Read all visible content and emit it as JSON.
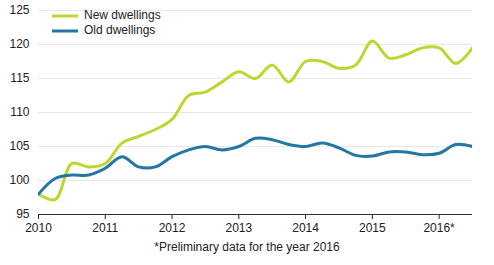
{
  "chart_data": {
    "type": "line",
    "x": [
      2010,
      2010.25,
      2010.5,
      2010.75,
      2011,
      2011.25,
      2011.5,
      2011.75,
      2012,
      2012.25,
      2012.5,
      2012.75,
      2013,
      2013.25,
      2013.5,
      2013.75,
      2014,
      2014.25,
      2014.5,
      2014.75,
      2015,
      2015.25,
      2015.5,
      2015.75,
      2016,
      2016.25,
      2016.5
    ],
    "series": [
      {
        "name": "New dwellings",
        "color": "#bdd632",
        "values": [
          98,
          97.2,
          102.5,
          102,
          102.5,
          105.5,
          106.5,
          107.5,
          109,
          112.5,
          113,
          114.5,
          116,
          115,
          117,
          114.5,
          117.5,
          117.5,
          116.5,
          117,
          120.5,
          118,
          118.5,
          119.5,
          119.5,
          117.2,
          119.5
        ]
      },
      {
        "name": "Old dwellings",
        "color": "#2277a6",
        "values": [
          98,
          100.3,
          100.8,
          100.8,
          101.8,
          103.5,
          102,
          102,
          103.5,
          104.5,
          105,
          104.5,
          105,
          106.2,
          106,
          105.3,
          105,
          105.5,
          104.8,
          103.7,
          103.6,
          104.2,
          104.2,
          103.8,
          104,
          105.3,
          105
        ]
      }
    ],
    "xlim": [
      2010,
      2016.5
    ],
    "xticks": [
      2010,
      2011,
      2012,
      2013,
      2014,
      2015,
      {
        "value": 2016,
        "label": "2016*"
      }
    ],
    "ylim": [
      95,
      125
    ],
    "yticks": [
      95,
      100,
      105,
      110,
      115,
      120,
      125
    ],
    "grid": true,
    "legend": "top-left",
    "annotations": [
      "*Preliminary data for the year 2016"
    ]
  }
}
